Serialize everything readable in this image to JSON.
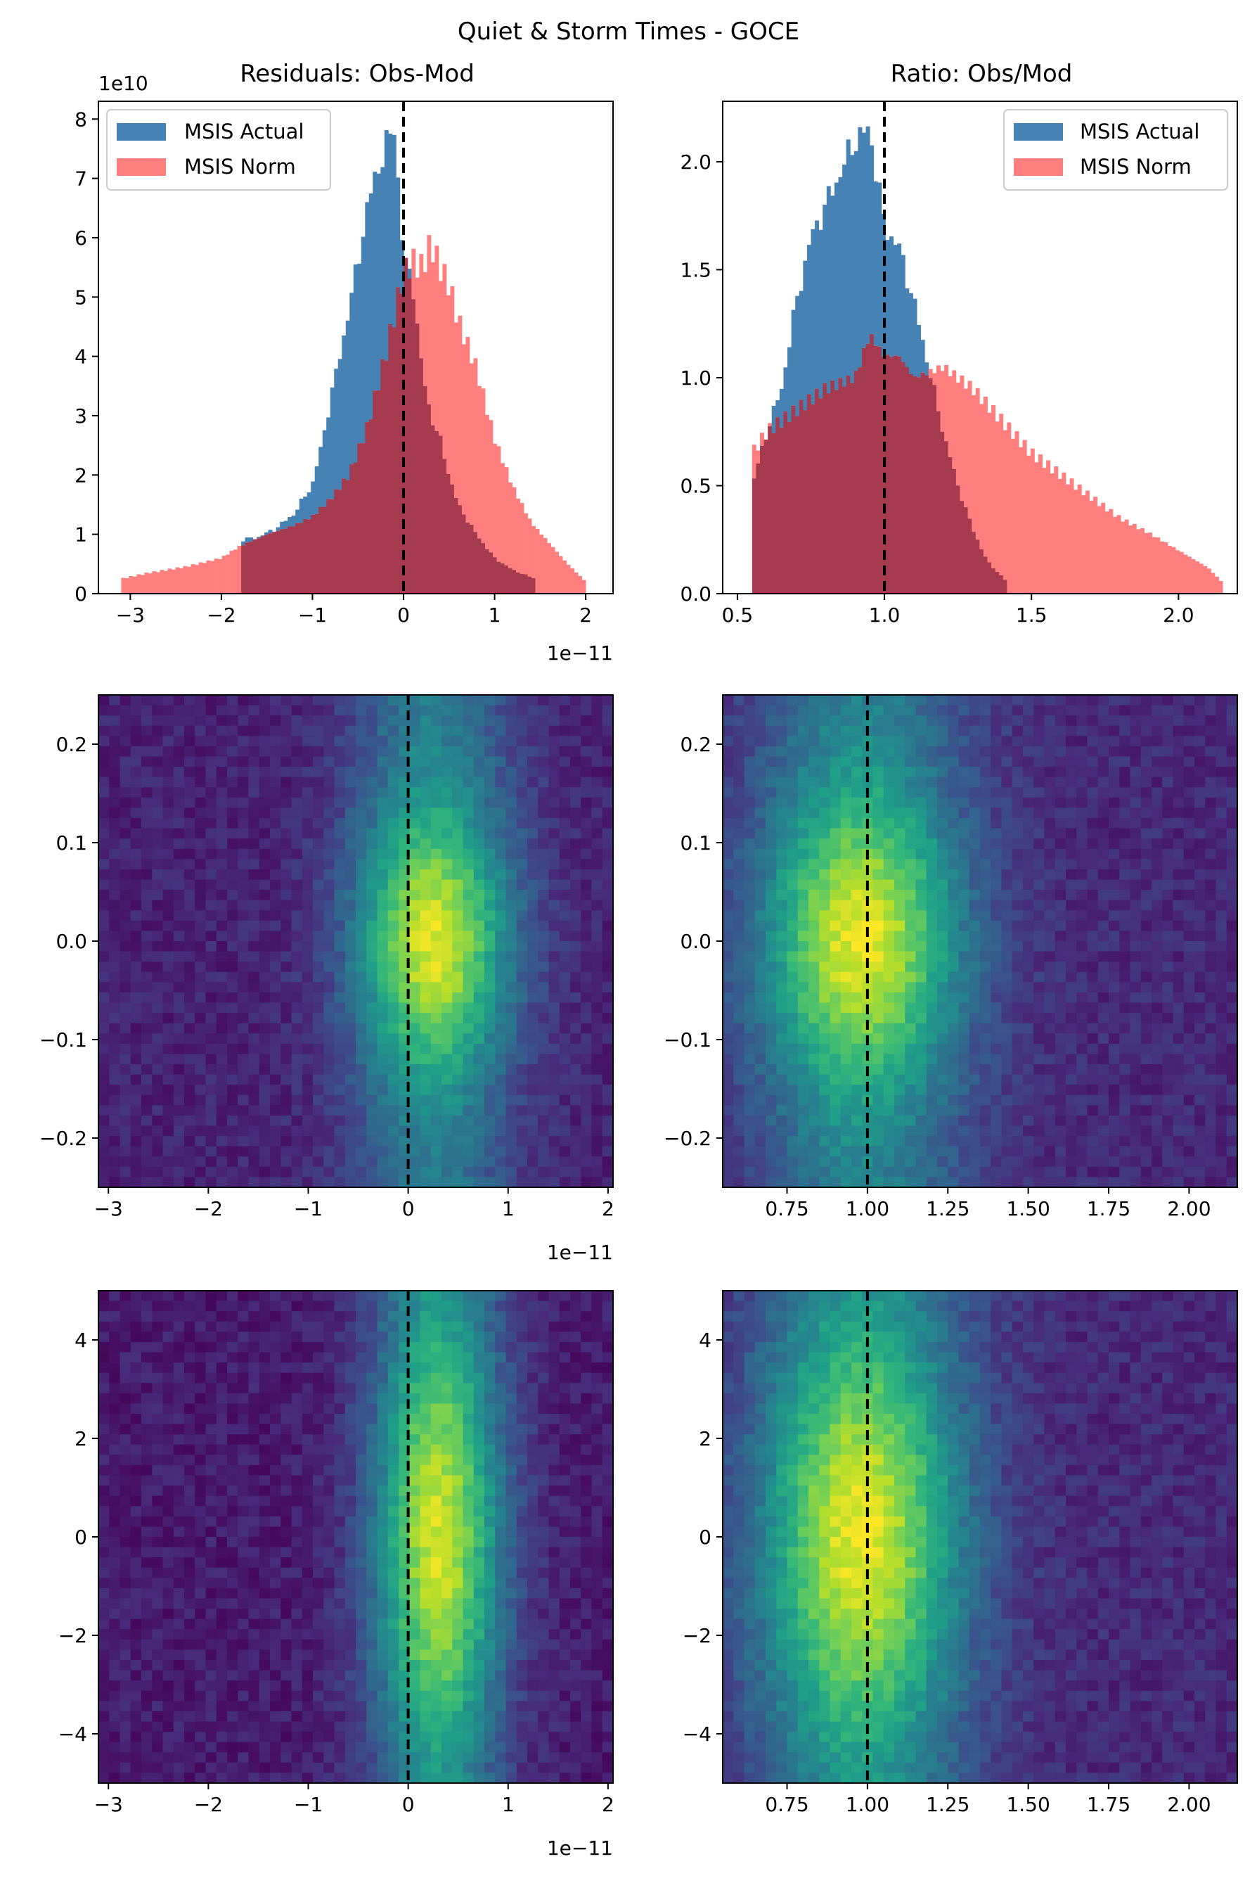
{
  "figure": {
    "suptitle": "Quiet & Storm Times - GOCE",
    "colors": {
      "actual": "#4682b4",
      "norm": "#ff7f7f",
      "overlap": "#a63a4f",
      "vline": "#000000",
      "cmap": [
        "#440154",
        "#482777",
        "#3e4989",
        "#31688e",
        "#26828e",
        "#1f9e89",
        "#35b779",
        "#6ece58",
        "#b5de2b",
        "#fde725"
      ]
    }
  },
  "chart_data": [
    {
      "id": "res-hist",
      "type": "bar",
      "title": "Residuals: Obs-Mod",
      "y_offset_label": "1e10",
      "x_offset_label": "1e−11",
      "xlim": [
        -3.35,
        2.3
      ],
      "ylim": [
        0,
        8.3
      ],
      "xticks": [
        -3,
        -2,
        -1,
        0,
        1,
        2
      ],
      "xtick_labels": [
        "−3",
        "−2",
        "−1",
        "0",
        "1",
        "2"
      ],
      "yticks": [
        0,
        1,
        2,
        3,
        4,
        5,
        6,
        7,
        8
      ],
      "ytick_labels": [
        "0",
        "1",
        "2",
        "3",
        "4",
        "5",
        "6",
        "7",
        "8"
      ],
      "legend": {
        "position": "upper left",
        "entries": [
          "MSIS Actual",
          "MSIS Norm"
        ]
      },
      "vline_x": 0,
      "series": [
        {
          "name": "MSIS Actual",
          "x": [
            -1.8,
            -1.6,
            -1.4,
            -1.2,
            -1.0,
            -0.9,
            -0.8,
            -0.7,
            -0.6,
            -0.5,
            -0.4,
            -0.3,
            -0.2,
            -0.1,
            0.0,
            0.1,
            0.2,
            0.3,
            0.4,
            0.5,
            0.6,
            0.8,
            1.0,
            1.2,
            1.45
          ],
          "y": [
            0.9,
            0.95,
            1.1,
            1.35,
            1.85,
            2.5,
            3.3,
            4.0,
            4.8,
            5.6,
            6.5,
            7.1,
            7.5,
            7.9,
            5.6,
            5.3,
            3.8,
            3.0,
            2.6,
            2.0,
            1.5,
            1.0,
            0.6,
            0.4,
            0.25
          ]
        },
        {
          "name": "MSIS Norm",
          "x": [
            -3.1,
            -2.8,
            -2.4,
            -2.0,
            -1.8,
            -1.5,
            -1.2,
            -1.0,
            -0.8,
            -0.6,
            -0.4,
            -0.2,
            0.0,
            0.1,
            0.2,
            0.3,
            0.4,
            0.5,
            0.6,
            0.8,
            1.0,
            1.2,
            1.4,
            1.6,
            1.8,
            2.0
          ],
          "y": [
            0.25,
            0.35,
            0.45,
            0.6,
            0.8,
            1.0,
            1.15,
            1.3,
            1.6,
            2.0,
            2.8,
            4.0,
            5.4,
            5.6,
            5.5,
            5.9,
            5.5,
            5.2,
            4.6,
            3.8,
            2.6,
            1.8,
            1.2,
            0.85,
            0.5,
            0.2
          ]
        }
      ]
    },
    {
      "id": "ratio-hist",
      "type": "bar",
      "title": "Ratio: Obs/Mod",
      "xlim": [
        0.45,
        2.2
      ],
      "ylim": [
        0,
        2.28
      ],
      "xticks": [
        0.5,
        1.0,
        1.5,
        2.0
      ],
      "xtick_labels": [
        "0.5",
        "1.0",
        "1.5",
        "2.0"
      ],
      "yticks": [
        0.0,
        0.5,
        1.0,
        1.5,
        2.0
      ],
      "ytick_labels": [
        "0.0",
        "0.5",
        "1.0",
        "1.5",
        "2.0"
      ],
      "legend": {
        "position": "upper right",
        "entries": [
          "MSIS Actual",
          "MSIS Norm"
        ]
      },
      "vline_x": 1.0,
      "series": [
        {
          "name": "MSIS Actual",
          "x": [
            0.55,
            0.6,
            0.65,
            0.7,
            0.75,
            0.8,
            0.85,
            0.9,
            0.95,
            1.0,
            1.05,
            1.1,
            1.15,
            1.2,
            1.25,
            1.3,
            1.35,
            1.42
          ],
          "y": [
            0.5,
            0.75,
            0.95,
            1.35,
            1.65,
            1.8,
            1.95,
            2.1,
            2.15,
            1.7,
            1.6,
            1.35,
            1.05,
            0.75,
            0.5,
            0.3,
            0.15,
            0.05
          ]
        },
        {
          "name": "MSIS Norm",
          "x": [
            0.55,
            0.6,
            0.7,
            0.8,
            0.9,
            0.95,
            1.0,
            1.05,
            1.1,
            1.2,
            1.3,
            1.4,
            1.5,
            1.6,
            1.7,
            1.8,
            1.9,
            2.0,
            2.1,
            2.15
          ],
          "y": [
            0.65,
            0.75,
            0.85,
            0.95,
            1.0,
            1.2,
            1.1,
            1.1,
            1.0,
            1.05,
            0.95,
            0.8,
            0.65,
            0.55,
            0.45,
            0.35,
            0.28,
            0.2,
            0.12,
            0.05
          ]
        }
      ]
    },
    {
      "id": "res-heat-mid",
      "type": "heatmap",
      "x_offset_label": "1e−11",
      "xlim": [
        -3.1,
        2.05
      ],
      "ylim": [
        -0.25,
        0.25
      ],
      "xticks": [
        -3,
        -2,
        -1,
        0,
        1,
        2
      ],
      "xtick_labels": [
        "−3",
        "−2",
        "−1",
        "0",
        "1",
        "2"
      ],
      "yticks": [
        -0.2,
        -0.1,
        0.0,
        0.1,
        0.2
      ],
      "ytick_labels": [
        "−0.2",
        "−0.1",
        "0.0",
        "0.1",
        "0.2"
      ],
      "vline_x": 0,
      "peak": {
        "x": 0.25,
        "y": 0.0
      },
      "spread": {
        "x": 0.55,
        "y": 0.09
      },
      "background": 0.1,
      "bins": [
        48,
        48
      ]
    },
    {
      "id": "ratio-heat-mid",
      "type": "heatmap",
      "xlim": [
        0.55,
        2.15
      ],
      "ylim": [
        -0.25,
        0.25
      ],
      "xticks": [
        0.75,
        1.0,
        1.25,
        1.5,
        1.75,
        2.0
      ],
      "xtick_labels": [
        "0.75",
        "1.00",
        "1.25",
        "1.50",
        "1.75",
        "2.00"
      ],
      "yticks": [
        -0.2,
        -0.1,
        0.0,
        0.1,
        0.2
      ],
      "ytick_labels": [
        "−0.2",
        "−0.1",
        "0.0",
        "0.1",
        "0.2"
      ],
      "vline_x": 1.0,
      "peak": {
        "x": 0.98,
        "y": 0.0
      },
      "spread": {
        "x": 0.22,
        "y": 0.1
      },
      "background": 0.12,
      "bins": [
        48,
        48
      ]
    },
    {
      "id": "res-heat-bot",
      "type": "heatmap",
      "x_offset_label": "1e−11",
      "xlim": [
        -3.1,
        2.05
      ],
      "ylim": [
        -5,
        5
      ],
      "xticks": [
        -3,
        -2,
        -1,
        0,
        1,
        2
      ],
      "xtick_labels": [
        "−3",
        "−2",
        "−1",
        "0",
        "1",
        "2"
      ],
      "yticks": [
        -4,
        -2,
        0,
        2,
        4
      ],
      "ytick_labels": [
        "−4",
        "−2",
        "0",
        "2",
        "4"
      ],
      "vline_x": 0,
      "peak": {
        "x": 0.3,
        "y": 0.0
      },
      "spread": {
        "x": 0.45,
        "y": 3.0
      },
      "background": 0.08,
      "bins": [
        48,
        48
      ]
    },
    {
      "id": "ratio-heat-bot",
      "type": "heatmap",
      "xlim": [
        0.55,
        2.15
      ],
      "ylim": [
        -5,
        5
      ],
      "xticks": [
        0.75,
        1.0,
        1.25,
        1.5,
        1.75,
        2.0
      ],
      "xtick_labels": [
        "0.75",
        "1.00",
        "1.25",
        "1.50",
        "1.75",
        "2.00"
      ],
      "yticks": [
        -4,
        -2,
        0,
        2,
        4
      ],
      "ytick_labels": [
        "−4",
        "−2",
        "0",
        "2",
        "4"
      ],
      "vline_x": 1.0,
      "peak": {
        "x": 0.98,
        "y": 0.0
      },
      "spread": {
        "x": 0.22,
        "y": 2.8
      },
      "background": 0.12,
      "bins": [
        48,
        48
      ]
    }
  ]
}
